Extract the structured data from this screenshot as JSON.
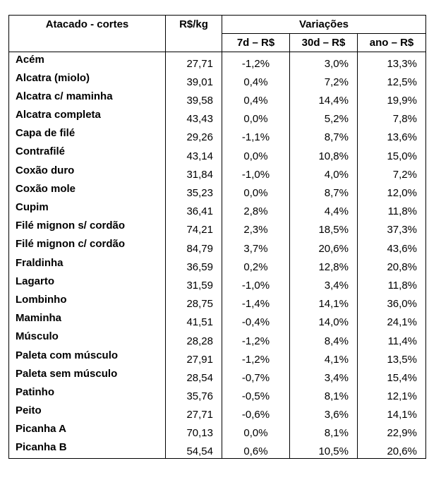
{
  "header": {
    "cut": "Atacado - cortes",
    "price": "R$/kg",
    "variations": "Variações",
    "d7": "7d – R$",
    "d30": "30d – R$",
    "year": "ano – R$"
  },
  "rows": [
    {
      "name": "Acém",
      "price": "27,71",
      "d7": "-1,2%",
      "d30": "3,0%",
      "year": "13,3%"
    },
    {
      "name": "Alcatra (miolo)",
      "price": "39,01",
      "d7": "0,4%",
      "d30": "7,2%",
      "year": "12,5%"
    },
    {
      "name": "Alcatra c/ maminha",
      "price": "39,58",
      "d7": "0,4%",
      "d30": "14,4%",
      "year": "19,9%"
    },
    {
      "name": "Alcatra completa",
      "price": "43,43",
      "d7": "0,0%",
      "d30": "5,2%",
      "year": "7,8%"
    },
    {
      "name": "Capa de filé",
      "price": "29,26",
      "d7": "-1,1%",
      "d30": "8,7%",
      "year": "13,6%"
    },
    {
      "name": "Contrafilé",
      "price": "43,14",
      "d7": "0,0%",
      "d30": "10,8%",
      "year": "15,0%"
    },
    {
      "name": "Coxão duro",
      "price": "31,84",
      "d7": "-1,0%",
      "d30": "4,0%",
      "year": "7,2%"
    },
    {
      "name": "Coxão mole",
      "price": "35,23",
      "d7": "0,0%",
      "d30": "8,7%",
      "year": "12,0%"
    },
    {
      "name": "Cupim",
      "price": "36,41",
      "d7": "2,8%",
      "d30": "4,4%",
      "year": "11,8%"
    },
    {
      "name": "Filé mignon s/ cordão",
      "price": "74,21",
      "d7": "2,3%",
      "d30": "18,5%",
      "year": "37,3%"
    },
    {
      "name": "Filé mignon c/ cordão",
      "price": "84,79",
      "d7": "3,7%",
      "d30": "20,6%",
      "year": "43,6%"
    },
    {
      "name": "Fraldinha",
      "price": "36,59",
      "d7": "0,2%",
      "d30": "12,8%",
      "year": "20,8%"
    },
    {
      "name": "Lagarto",
      "price": "31,59",
      "d7": "-1,0%",
      "d30": "3,4%",
      "year": "11,8%"
    },
    {
      "name": "Lombinho",
      "price": "28,75",
      "d7": "-1,4%",
      "d30": "14,1%",
      "year": "36,0%"
    },
    {
      "name": "Maminha",
      "price": "41,51",
      "d7": "-0,4%",
      "d30": "14,0%",
      "year": "24,1%"
    },
    {
      "name": "Músculo",
      "price": "28,28",
      "d7": "-1,2%",
      "d30": "8,4%",
      "year": "11,4%"
    },
    {
      "name": "Paleta com músculo",
      "price": "27,91",
      "d7": "-1,2%",
      "d30": "4,1%",
      "year": "13,5%"
    },
    {
      "name": "Paleta sem músculo",
      "price": "28,54",
      "d7": "-0,7%",
      "d30": "3,4%",
      "year": "15,4%"
    },
    {
      "name": "Patinho",
      "price": "35,76",
      "d7": "-0,5%",
      "d30": "8,1%",
      "year": "12,1%"
    },
    {
      "name": "Peito",
      "price": "27,71",
      "d7": "-0,6%",
      "d30": "3,6%",
      "year": "14,1%"
    },
    {
      "name": "Picanha A",
      "price": "70,13",
      "d7": "0,0%",
      "d30": "8,1%",
      "year": "22,9%"
    },
    {
      "name": "Picanha B",
      "price": "54,54",
      "d7": "0,6%",
      "d30": "10,5%",
      "year": "20,6%"
    }
  ]
}
